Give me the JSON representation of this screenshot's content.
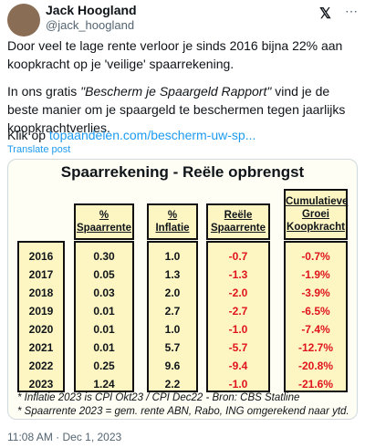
{
  "author": {
    "name": "Jack Hoogland",
    "handle": "@jack_hoogland"
  },
  "post": {
    "paragraph1": "Door veel te lage rente verloor je sinds 2016 bijna 22% aan koopkracht op je 'veilige' spaarrekening.",
    "paragraph2": {
      "before": "In ons gratis ",
      "italic": "\"Bescherm je Spaargeld Rapport\"",
      "after": " vind je de beste manier om je spaargeld te beschermen tegen jaarlijks koopkrachtverlies."
    },
    "paragraph3": {
      "text": "Klik op ",
      "link": "topaandelen.com/bescherm-uw-sp..."
    },
    "translate": "Translate post"
  },
  "image": {
    "title": "Spaarrekening - Reële opbrengst",
    "table": {
      "columns": [
        {
          "header": [],
          "cells": [
            "2016",
            "2017",
            "2018",
            "2019",
            "2020",
            "2021",
            "2022",
            "2023"
          ]
        },
        {
          "header": [
            "%",
            "Spaarrente"
          ],
          "cells": [
            "0.30",
            "0.05",
            "0.03",
            "0.01",
            "0.01",
            "0.01",
            "0.25",
            "1.24"
          ]
        },
        {
          "header": [
            "%",
            "Inflatie"
          ],
          "cells": [
            "1.0",
            "1.3",
            "2.0",
            "2.7",
            "1.0",
            "5.7",
            "9.6",
            "2.2"
          ]
        },
        {
          "header": [
            "Reële",
            "Spaarrente"
          ],
          "cells": [
            "-0.7",
            "-1.3",
            "-2.0",
            "-2.7",
            "-1.0",
            "-5.7",
            "-9.4",
            "-1.0"
          ]
        },
        {
          "header": [
            "Cumulatieve",
            "Groei",
            "Koopkracht"
          ],
          "cells": [
            "-0.7%",
            "-1.9%",
            "-3.9%",
            "-6.5%",
            "-7.4%",
            "-12.7%",
            "-20.8%",
            "-21.6%"
          ]
        }
      ]
    },
    "footnotes": [
      "* Inflatie 2023 is CPI Okt23 / CPI Dec22 - Bron: CBS Statline",
      "* Spaarrente 2023 = gem. rente ABN, Rabo, ING omgerekend naar ytd."
    ]
  },
  "timestamp": "11:08 AM · Dec 1, 2023"
}
